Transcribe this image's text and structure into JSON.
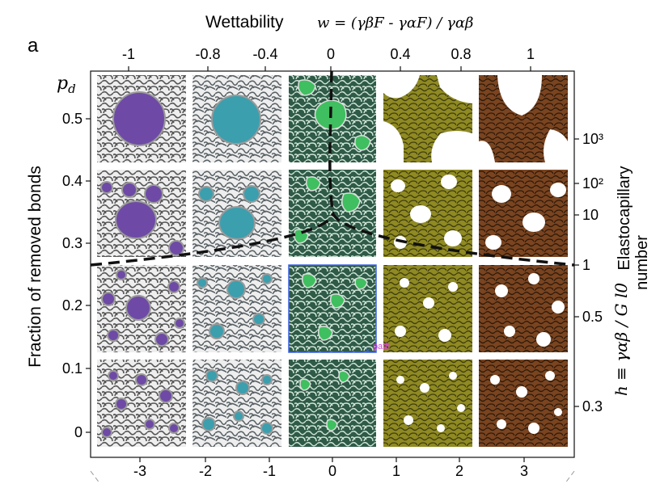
{
  "panel_label": "a",
  "top_axis": {
    "label_text": "Wettability",
    "label_formula": "w = (γβF - γαF) / γαβ",
    "ticks": [
      "-1",
      "-0.8",
      "-0.4",
      "0",
      "0.4",
      "0.8",
      "1"
    ]
  },
  "bottom_axis": {
    "ticks": [
      "-3",
      "-2",
      "-1",
      "0",
      "1",
      "2",
      "3"
    ]
  },
  "left_axis": {
    "label": "Fraction of removed bonds",
    "symbol": "p_d",
    "ticks": [
      "0.5",
      "0.4",
      "0.3",
      "0.2",
      "0.1",
      "0"
    ]
  },
  "right_axis": {
    "label_line1": "Elastocapillary",
    "label_line2": "number",
    "symbol_formula": "h ≡ γαβ / G l0",
    "ticks": [
      "10³",
      "10²",
      "10",
      "1",
      "0.5",
      "0.3"
    ]
  },
  "cursor_label": "path",
  "colors": {
    "purple": "#6e4aa6",
    "teal": "#3b9fae",
    "green": "#3fbf5f",
    "olive": "#a6a22c",
    "brown": "#8a4e24",
    "network_gray": "#555555",
    "selection": "#3b64e0",
    "cursor": "#d93bd9"
  }
}
